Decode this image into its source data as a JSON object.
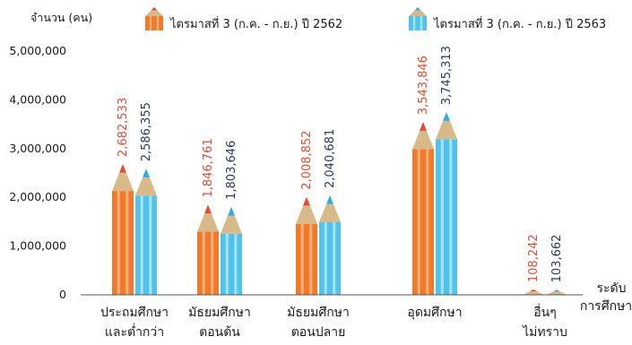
{
  "chart_data": {
    "type": "bar",
    "ylabel": "จำนวน (คน)",
    "xlabel_lines": [
      "ระดับ",
      "การศึกษา"
    ],
    "ylim": [
      0,
      5000000
    ],
    "yticks": [
      "0",
      "1,000,000",
      "2,000,000",
      "3,000,000",
      "4,000,000",
      "5,000,000"
    ],
    "grid": false,
    "legend_position": "top",
    "categories": [
      [
        "ประถมศึกษา",
        "และต่ำกว่า"
      ],
      [
        "มัธยมศึกษา",
        "ตอนต้น"
      ],
      [
        "มัธยมศึกษา",
        "ตอนปลาย"
      ],
      [
        "อุดมศึกษา"
      ],
      [
        "อื่นๆ",
        "ไม่ทราบ"
      ]
    ],
    "series": [
      {
        "name": "ไตรมาสที่ 3 (ก.ค. - ก.ย.) ปี 2562",
        "color": "#f07a2a",
        "stripe": "#f9b07a",
        "tip": "#e8482f",
        "label_color": "#e8482f",
        "values": [
          2682533,
          1846761,
          2008852,
          3543846,
          108242
        ],
        "labels": [
          "2,682,533",
          "1,846,761",
          "2,008,852",
          "3,543,846",
          "108,242"
        ]
      },
      {
        "name": "ไตรมาสที่ 3 (ก.ค. - ก.ย.) ปี 2563",
        "color": "#4fc3ea",
        "stripe": "#a9e3f6",
        "tip": "#27b0e6",
        "label_color": "#2c3566",
        "values": [
          2586355,
          1803646,
          2040681,
          3745313,
          103662
        ],
        "labels": [
          "2,586,355",
          "1,803,646",
          "2,040,681",
          "3,745,313",
          "103,662"
        ]
      }
    ],
    "wood_color": "#d8b98a"
  }
}
